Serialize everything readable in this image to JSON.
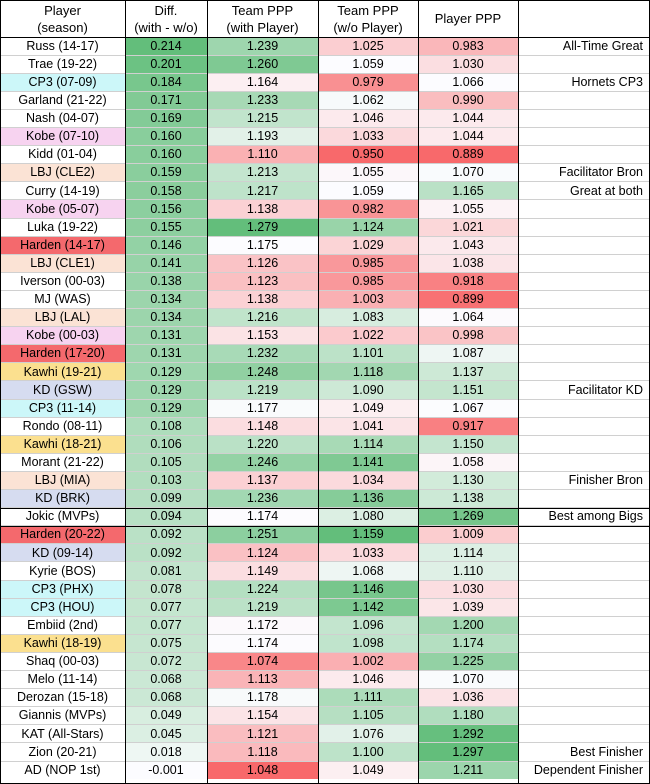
{
  "headers": {
    "player": [
      "Player",
      "(season)"
    ],
    "diff": [
      "Diff.",
      "(with - w/o)"
    ],
    "team_with": [
      "Team PPP",
      "(with Player)"
    ],
    "team_without": [
      "Team PPP",
      "(w/o Player)"
    ],
    "player_ppp": [
      "Player PPP"
    ]
  },
  "rows": [
    {
      "player": "Russ (14-17)",
      "diff": "0.214",
      "with": "1.239",
      "without": "1.025",
      "ppp": "0.983",
      "note": "All-Time Great"
    },
    {
      "player": "Trae (19-22)",
      "diff": "0.201",
      "with": "1.260",
      "without": "1.059",
      "ppp": "1.030",
      "note": ""
    },
    {
      "player": "CP3 (07-09)",
      "diff": "0.184",
      "with": "1.164",
      "without": "0.979",
      "ppp": "1.066",
      "note": "Hornets CP3"
    },
    {
      "player": "Garland (21-22)",
      "diff": "0.171",
      "with": "1.233",
      "without": "1.062",
      "ppp": "0.990",
      "note": ""
    },
    {
      "player": "Nash (04-07)",
      "diff": "0.169",
      "with": "1.215",
      "without": "1.046",
      "ppp": "1.044",
      "note": ""
    },
    {
      "player": "Kobe (07-10)",
      "diff": "0.160",
      "with": "1.193",
      "without": "1.033",
      "ppp": "1.044",
      "note": ""
    },
    {
      "player": "Kidd (01-04)",
      "diff": "0.160",
      "with": "1.110",
      "without": "0.950",
      "ppp": "0.889",
      "note": ""
    },
    {
      "player": "LBJ (CLE2)",
      "diff": "0.159",
      "with": "1.213",
      "without": "1.055",
      "ppp": "1.070",
      "note": "Facilitator Bron"
    },
    {
      "player": "Curry (14-19)",
      "diff": "0.158",
      "with": "1.217",
      "without": "1.059",
      "ppp": "1.165",
      "note": "Great at both"
    },
    {
      "player": "Kobe (05-07)",
      "diff": "0.156",
      "with": "1.138",
      "without": "0.982",
      "ppp": "1.055",
      "note": ""
    },
    {
      "player": "Luka (19-22)",
      "diff": "0.155",
      "with": "1.279",
      "without": "1.124",
      "ppp": "1.021",
      "note": ""
    },
    {
      "player": "Harden (14-17)",
      "diff": "0.146",
      "with": "1.175",
      "without": "1.029",
      "ppp": "1.043",
      "note": ""
    },
    {
      "player": "LBJ (CLE1)",
      "diff": "0.141",
      "with": "1.126",
      "without": "0.985",
      "ppp": "1.038",
      "note": ""
    },
    {
      "player": "Iverson (00-03)",
      "diff": "0.138",
      "with": "1.123",
      "without": "0.985",
      "ppp": "0.918",
      "note": ""
    },
    {
      "player": "MJ (WAS)",
      "diff": "0.134",
      "with": "1.138",
      "without": "1.003",
      "ppp": "0.899",
      "note": ""
    },
    {
      "player": "LBJ (LAL)",
      "diff": "0.134",
      "with": "1.216",
      "without": "1.083",
      "ppp": "1.064",
      "note": ""
    },
    {
      "player": "Kobe (00-03)",
      "diff": "0.131",
      "with": "1.153",
      "without": "1.022",
      "ppp": "0.998",
      "note": ""
    },
    {
      "player": "Harden (17-20)",
      "diff": "0.131",
      "with": "1.232",
      "without": "1.101",
      "ppp": "1.087",
      "note": ""
    },
    {
      "player": "Kawhi (19-21)",
      "diff": "0.129",
      "with": "1.248",
      "without": "1.118",
      "ppp": "1.137",
      "note": ""
    },
    {
      "player": "KD (GSW)",
      "diff": "0.129",
      "with": "1.219",
      "without": "1.090",
      "ppp": "1.151",
      "note": "Facilitator KD"
    },
    {
      "player": "CP3 (11-14)",
      "diff": "0.129",
      "with": "1.177",
      "without": "1.049",
      "ppp": "1.067",
      "note": ""
    },
    {
      "player": "Rondo (08-11)",
      "diff": "0.108",
      "with": "1.148",
      "without": "1.041",
      "ppp": "0.917",
      "note": ""
    },
    {
      "player": "Kawhi (18-21)",
      "diff": "0.106",
      "with": "1.220",
      "without": "1.114",
      "ppp": "1.150",
      "note": ""
    },
    {
      "player": "Morant (21-22)",
      "diff": "0.105",
      "with": "1.246",
      "without": "1.141",
      "ppp": "1.058",
      "note": ""
    },
    {
      "player": "LBJ (MIA)",
      "diff": "0.103",
      "with": "1.137",
      "without": "1.034",
      "ppp": "1.130",
      "note": "Finisher Bron"
    },
    {
      "player": "KD (BRK)",
      "diff": "0.099",
      "with": "1.236",
      "without": "1.136",
      "ppp": "1.138",
      "note": ""
    },
    {
      "player": "Jokic (MVPs)",
      "diff": "0.094",
      "with": "1.174",
      "without": "1.080",
      "ppp": "1.269",
      "note": "Best among Bigs"
    },
    {
      "player": "Harden (20-22)",
      "diff": "0.092",
      "with": "1.251",
      "without": "1.159",
      "ppp": "1.009",
      "note": ""
    },
    {
      "player": "KD (09-14)",
      "diff": "0.092",
      "with": "1.124",
      "without": "1.033",
      "ppp": "1.114",
      "note": ""
    },
    {
      "player": "Kyrie (BOS)",
      "diff": "0.081",
      "with": "1.149",
      "without": "1.068",
      "ppp": "1.110",
      "note": ""
    },
    {
      "player": "CP3 (PHX)",
      "diff": "0.078",
      "with": "1.224",
      "without": "1.146",
      "ppp": "1.030",
      "note": ""
    },
    {
      "player": "CP3 (HOU)",
      "diff": "0.077",
      "with": "1.219",
      "without": "1.142",
      "ppp": "1.039",
      "note": ""
    },
    {
      "player": "Embiid (2nd)",
      "diff": "0.077",
      "with": "1.172",
      "without": "1.096",
      "ppp": "1.200",
      "note": ""
    },
    {
      "player": "Kawhi (18-19)",
      "diff": "0.075",
      "with": "1.174",
      "without": "1.098",
      "ppp": "1.174",
      "note": ""
    },
    {
      "player": "Shaq (00-03)",
      "diff": "0.072",
      "with": "1.074",
      "without": "1.002",
      "ppp": "1.225",
      "note": ""
    },
    {
      "player": "Melo (11-14)",
      "diff": "0.068",
      "with": "1.113",
      "without": "1.046",
      "ppp": "1.070",
      "note": ""
    },
    {
      "player": "Derozan (15-18)",
      "diff": "0.068",
      "with": "1.178",
      "without": "1.111",
      "ppp": "1.036",
      "note": ""
    },
    {
      "player": "Giannis (MVPs)",
      "diff": "0.049",
      "with": "1.154",
      "without": "1.105",
      "ppp": "1.180",
      "note": ""
    },
    {
      "player": "KAT (All-Stars)",
      "diff": "0.045",
      "with": "1.121",
      "without": "1.076",
      "ppp": "1.292",
      "note": ""
    },
    {
      "player": "Zion (20-21)",
      "diff": "0.018",
      "with": "1.118",
      "without": "1.100",
      "ppp": "1.297",
      "note": "Best Finisher"
    },
    {
      "player": "AD (NOP 1st)",
      "diff": "-0.001",
      "with": "1.048",
      "without": "1.049",
      "ppp": "1.211",
      "note": "Dependent Finisher"
    }
  ],
  "colors": {
    "scale_low": "#f8696b",
    "scale_mid": "#fcfcff",
    "scale_high": "#63be7b",
    "player_fill": {
      "russ": "#ffffff",
      "trae": "#ffffff",
      "cp3": "#ccf7f9",
      "garland": "#ffffff",
      "nash": "#ffffff",
      "kobe": "#f7d3f0",
      "kidd": "#ffffff",
      "lbj": "#fbe3d5",
      "curry": "#ffffff",
      "luka": "#ffffff",
      "harden": "#f4696d",
      "iverson": "#ffffff",
      "mj": "#ffffff",
      "kawhi": "#fbe08f",
      "kd": "#d6dcf0",
      "rondo": "#ffffff",
      "morant": "#ffffff",
      "jokic": "#ffffff",
      "kyrie": "#ffffff",
      "embiid": "#ffffff",
      "shaq": "#ffffff",
      "melo": "#ffffff",
      "derozan": "#ffffff",
      "giannis": "#ffffff",
      "kat": "#ffffff",
      "zion": "#ffffff",
      "ad": "#ffffff"
    }
  }
}
